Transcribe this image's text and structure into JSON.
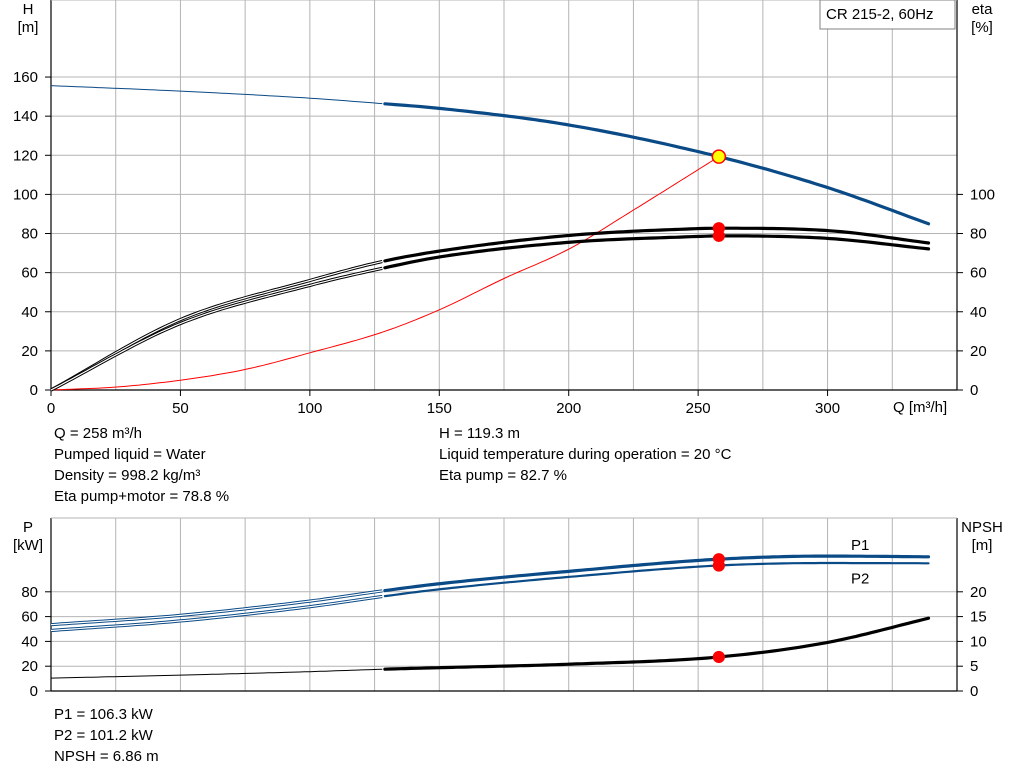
{
  "header": {
    "model_label": "CR 215-2, 60Hz"
  },
  "colors": {
    "blue": "#0a4a86",
    "red": "#ff0000",
    "black": "#000000",
    "grid": "#b4b4b4",
    "op_point_fill": "#ffff00"
  },
  "chart_data": [
    {
      "id": "pump_curves",
      "type": "line",
      "title": "",
      "xlabel": "Q [m³/h]",
      "ylabel": "H\n[m]",
      "y2label": "eta\n[%]",
      "xlim": [
        0,
        350
      ],
      "ylim": [
        0,
        170
      ],
      "y2lim": [
        0,
        170
      ],
      "grid": true,
      "x_ticks": [
        "0",
        "50",
        "100",
        "150",
        "200",
        "250",
        "300"
      ],
      "y_ticks": [
        "0",
        "20",
        "40",
        "60",
        "80",
        "100",
        "120",
        "140",
        "160"
      ],
      "y2_ticks": [
        "0",
        "20",
        "40",
        "60",
        "80",
        "100"
      ],
      "series": [
        {
          "name": "H",
          "color": "#0a4a86",
          "axis": "left",
          "x": [
            0,
            50,
            100,
            129,
            150,
            200,
            258,
            300,
            340
          ],
          "y": [
            155.6,
            152.8,
            149.2,
            146.3,
            144,
            135.5,
            119.3,
            103.5,
            84.5
          ]
        },
        {
          "name": "Eta pump",
          "color": "#000000",
          "axis": "right",
          "x": [
            0,
            50,
            100,
            129,
            150,
            200,
            250,
            258,
            300,
            340
          ],
          "y": [
            0,
            36,
            56,
            66,
            71,
            79,
            82.5,
            82.7,
            81.5,
            75
          ]
        },
        {
          "name": "Eta pump+motor",
          "color": "#000000",
          "axis": "right",
          "x": [
            0,
            50,
            100,
            129,
            150,
            200,
            250,
            258,
            300,
            340
          ],
          "y": [
            0,
            34,
            53.5,
            62.5,
            68,
            75.5,
            78.5,
            78.8,
            77.5,
            72
          ]
        },
        {
          "name": "System curve",
          "color": "#ff0000",
          "axis": "left",
          "x": [
            0,
            25,
            50,
            75,
            100,
            129,
            150,
            175,
            200,
            225,
            258
          ],
          "y": [
            0,
            1.5,
            5,
            10.5,
            19,
            30,
            41,
            57,
            72,
            92,
            119.3
          ]
        }
      ],
      "operating_point": {
        "q": 258,
        "h": 119.3,
        "eta_pump": 82.7,
        "eta_total": 78.8
      },
      "annotations": [
        "Q = 258 m³/h",
        "Pumped liquid = Water",
        "Density = 998.2 kg/m³",
        "Eta pump+motor = 78.8 %",
        "H = 119.3 m",
        "Liquid temperature during operation = 20 °C",
        "Eta pump = 82.7 %"
      ]
    },
    {
      "id": "power_npsh",
      "type": "line",
      "title": "",
      "xlabel": "",
      "ylabel": "P\n[kW]",
      "y2label": "NPSH\n[m]",
      "xlim": [
        0,
        350
      ],
      "ylim": [
        0,
        120
      ],
      "y2lim": [
        0,
        30
      ],
      "grid": true,
      "y_ticks": [
        "0",
        "20",
        "40",
        "60",
        "80"
      ],
      "y2_ticks": [
        "0",
        "5",
        "10",
        "15",
        "20"
      ],
      "series": [
        {
          "name": "P1",
          "color": "#0a4a86",
          "axis": "left",
          "x": [
            0,
            50,
            100,
            129,
            150,
            200,
            258,
            300,
            340
          ],
          "y": [
            53.5,
            61,
            72.5,
            81,
            86.5,
            96.5,
            106.3,
            108.8,
            108.2
          ]
        },
        {
          "name": "P2",
          "color": "#0a4a86",
          "axis": "left",
          "x": [
            0,
            50,
            100,
            129,
            150,
            200,
            258,
            300,
            340
          ],
          "y": [
            48.8,
            56.5,
            68,
            76.5,
            82,
            92,
            101.2,
            103.2,
            103
          ]
        },
        {
          "name": "NPSH",
          "color": "#000000",
          "axis": "right",
          "x": [
            0,
            50,
            100,
            129,
            150,
            200,
            258,
            300,
            340
          ],
          "y": [
            2.6,
            3.2,
            3.9,
            4.4,
            4.7,
            5.4,
            6.86,
            9.8,
            14.8
          ]
        }
      ],
      "operating_point": {
        "q": 258,
        "p1": 106.3,
        "p2": 101.2,
        "npsh": 6.86
      },
      "annotations": [
        "P1 = 106.3 kW",
        "P2 = 101.2 kW",
        "NPSH = 6.86 m"
      ]
    }
  ],
  "info_top": {
    "left": [
      "Q = 258 m³/h",
      "Pumped liquid = Water",
      "Density = 998.2 kg/m³",
      "Eta pump+motor = 78.8 %"
    ],
    "right": [
      "H = 119.3 m",
      "Liquid temperature during operation = 20 °C",
      "Eta pump = 82.7 %"
    ]
  },
  "info_bottom": [
    "P1 = 106.3 kW",
    "P2 = 101.2 kW",
    "NPSH = 6.86 m"
  ]
}
